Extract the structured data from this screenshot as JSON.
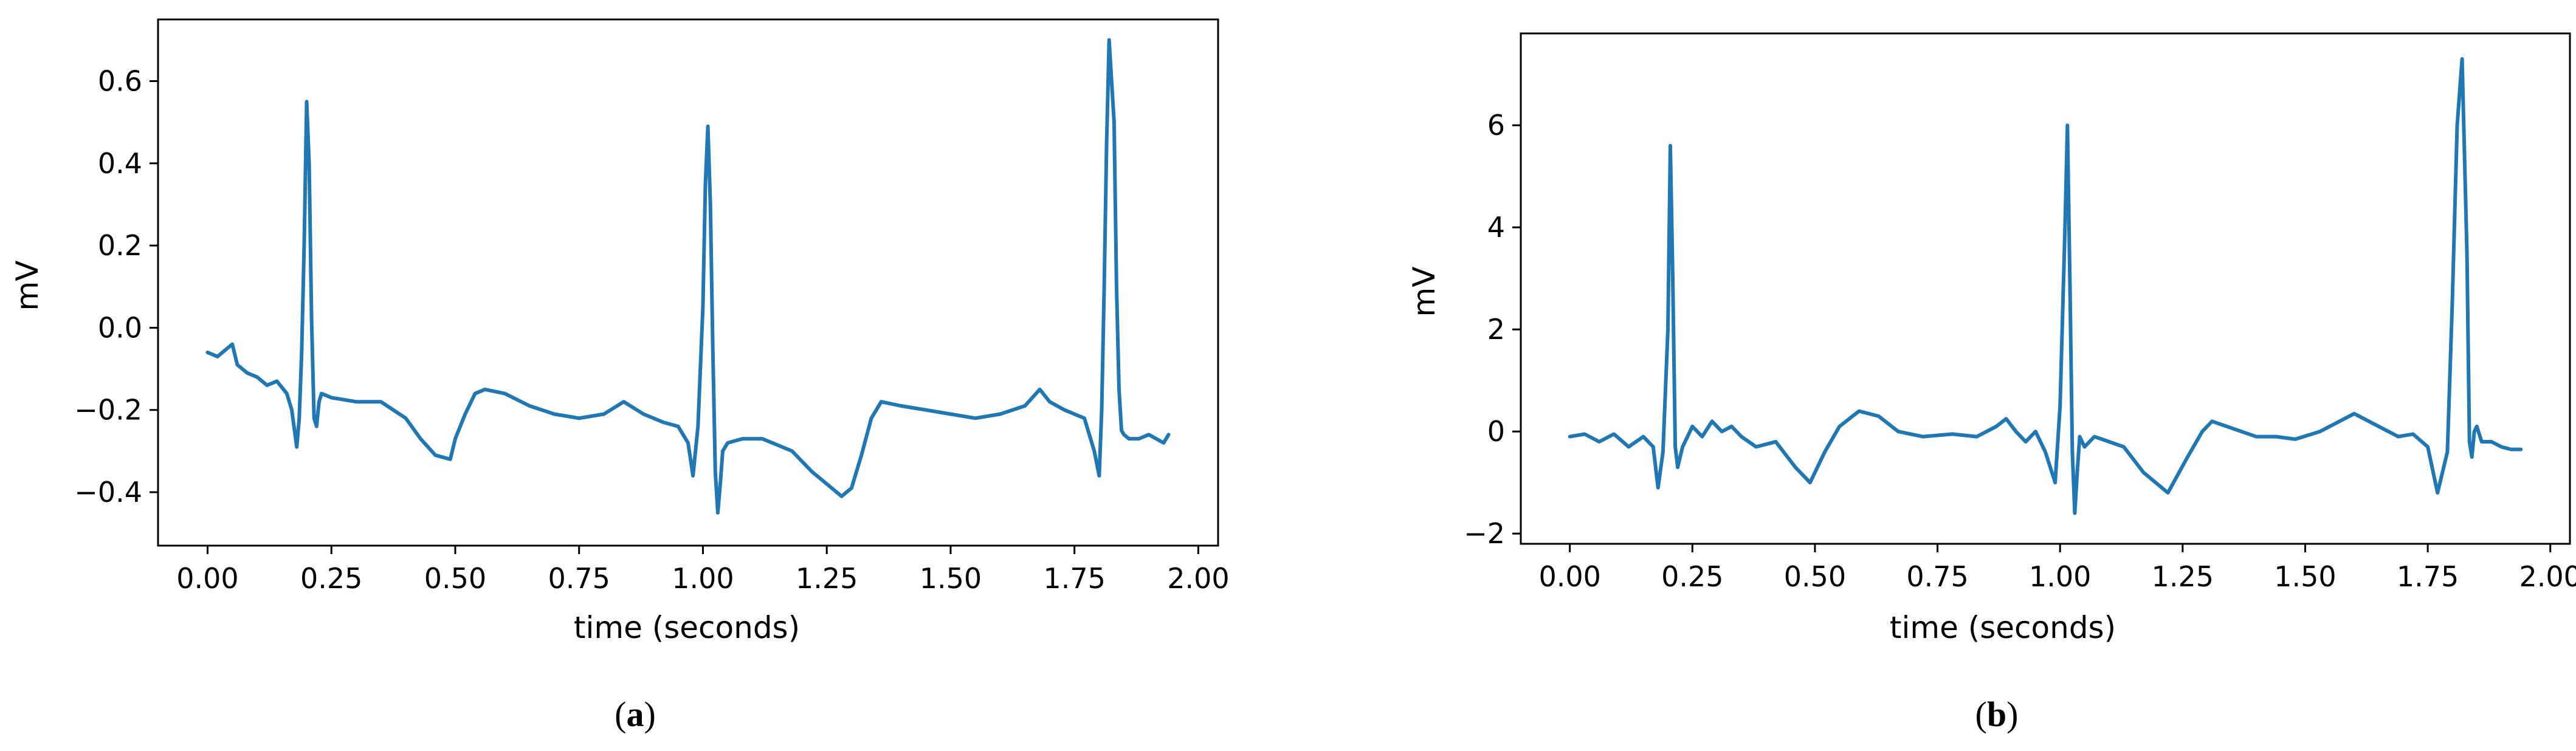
{
  "figure": {
    "background": "#ffffff",
    "line_color": "#1f77b4",
    "panels": [
      {
        "id": "a",
        "caption_letter": "a"
      },
      {
        "id": "b",
        "caption_letter": "b"
      }
    ]
  },
  "chart_data": [
    {
      "type": "line",
      "panel": "a",
      "title": "",
      "xlabel": "time (seconds)",
      "ylabel": "mV",
      "xlim": [
        -0.1,
        2.04
      ],
      "ylim": [
        -0.53,
        0.75
      ],
      "xticks": [
        0.0,
        0.25,
        0.5,
        0.75,
        1.0,
        1.25,
        1.5,
        1.75,
        2.0
      ],
      "xtick_labels": [
        "0.00",
        "0.25",
        "0.50",
        "0.75",
        "1.00",
        "1.25",
        "1.50",
        "1.75",
        "2.00"
      ],
      "yticks": [
        -0.4,
        -0.2,
        0.0,
        0.2,
        0.4,
        0.6
      ],
      "ytick_labels": [
        "−0.4",
        "−0.2",
        "0.0",
        "0.2",
        "0.4",
        "0.6"
      ],
      "grid": false,
      "legend": "none",
      "series": [
        {
          "color": "#1f77b4",
          "x": [
            0.0,
            0.02,
            0.03,
            0.05,
            0.06,
            0.08,
            0.1,
            0.12,
            0.14,
            0.16,
            0.17,
            0.18,
            0.185,
            0.19,
            0.195,
            0.2,
            0.205,
            0.21,
            0.215,
            0.22,
            0.225,
            0.23,
            0.25,
            0.3,
            0.35,
            0.4,
            0.43,
            0.46,
            0.49,
            0.5,
            0.52,
            0.54,
            0.56,
            0.6,
            0.65,
            0.7,
            0.75,
            0.8,
            0.84,
            0.88,
            0.92,
            0.95,
            0.97,
            0.98,
            0.99,
            1.0,
            1.005,
            1.01,
            1.015,
            1.02,
            1.025,
            1.03,
            1.035,
            1.04,
            1.045,
            1.05,
            1.08,
            1.12,
            1.18,
            1.22,
            1.25,
            1.28,
            1.3,
            1.32,
            1.34,
            1.36,
            1.4,
            1.45,
            1.5,
            1.55,
            1.6,
            1.65,
            1.68,
            1.7,
            1.73,
            1.77,
            1.79,
            1.8,
            1.805,
            1.81,
            1.815,
            1.82,
            1.83,
            1.835,
            1.84,
            1.845,
            1.85,
            1.86,
            1.88,
            1.9,
            1.93,
            1.94
          ],
          "y": [
            -0.06,
            -0.07,
            -0.06,
            -0.04,
            -0.09,
            -0.11,
            -0.12,
            -0.14,
            -0.13,
            -0.16,
            -0.2,
            -0.29,
            -0.22,
            -0.06,
            0.2,
            0.55,
            0.4,
            0.02,
            -0.22,
            -0.24,
            -0.18,
            -0.16,
            -0.17,
            -0.18,
            -0.18,
            -0.22,
            -0.27,
            -0.31,
            -0.32,
            -0.27,
            -0.21,
            -0.16,
            -0.15,
            -0.16,
            -0.19,
            -0.21,
            -0.22,
            -0.21,
            -0.18,
            -0.21,
            -0.23,
            -0.24,
            -0.28,
            -0.36,
            -0.24,
            0.05,
            0.35,
            0.49,
            0.3,
            -0.05,
            -0.35,
            -0.45,
            -0.38,
            -0.3,
            -0.29,
            -0.28,
            -0.27,
            -0.27,
            -0.3,
            -0.35,
            -0.38,
            -0.41,
            -0.39,
            -0.31,
            -0.22,
            -0.18,
            -0.19,
            -0.2,
            -0.21,
            -0.22,
            -0.21,
            -0.19,
            -0.15,
            -0.18,
            -0.2,
            -0.22,
            -0.3,
            -0.36,
            -0.2,
            0.1,
            0.45,
            0.7,
            0.5,
            0.1,
            -0.15,
            -0.25,
            -0.26,
            -0.27,
            -0.27,
            -0.26,
            -0.28,
            -0.26
          ]
        }
      ]
    },
    {
      "type": "line",
      "panel": "b",
      "title": "",
      "xlabel": "time (seconds)",
      "ylabel": "mV",
      "xlim": [
        -0.1,
        2.04
      ],
      "ylim": [
        -2.2,
        7.8
      ],
      "xticks": [
        0.0,
        0.25,
        0.5,
        0.75,
        1.0,
        1.25,
        1.5,
        1.75,
        2.0
      ],
      "xtick_labels": [
        "0.00",
        "0.25",
        "0.50",
        "0.75",
        "1.00",
        "1.25",
        "1.50",
        "1.75",
        "2.00"
      ],
      "yticks": [
        -2,
        0,
        2,
        4,
        6
      ],
      "ytick_labels": [
        "−2",
        "0",
        "2",
        "4",
        "6"
      ],
      "grid": false,
      "legend": "none",
      "series": [
        {
          "color": "#1f77b4",
          "x": [
            0.0,
            0.03,
            0.06,
            0.09,
            0.12,
            0.15,
            0.17,
            0.18,
            0.19,
            0.2,
            0.205,
            0.21,
            0.215,
            0.22,
            0.23,
            0.25,
            0.27,
            0.29,
            0.31,
            0.33,
            0.35,
            0.38,
            0.42,
            0.46,
            0.49,
            0.52,
            0.55,
            0.59,
            0.63,
            0.67,
            0.72,
            0.78,
            0.83,
            0.87,
            0.89,
            0.91,
            0.93,
            0.95,
            0.97,
            0.99,
            1.0,
            1.01,
            1.015,
            1.02,
            1.025,
            1.03,
            1.035,
            1.04,
            1.05,
            1.07,
            1.1,
            1.13,
            1.17,
            1.22,
            1.26,
            1.29,
            1.31,
            1.34,
            1.37,
            1.4,
            1.44,
            1.48,
            1.53,
            1.6,
            1.65,
            1.69,
            1.72,
            1.75,
            1.77,
            1.79,
            1.8,
            1.81,
            1.82,
            1.83,
            1.835,
            1.84,
            1.845,
            1.85,
            1.86,
            1.88,
            1.9,
            1.92,
            1.94
          ],
          "y": [
            -0.1,
            -0.05,
            -0.2,
            -0.05,
            -0.3,
            -0.1,
            -0.3,
            -1.1,
            -0.4,
            2.0,
            5.6,
            3.0,
            -0.3,
            -0.7,
            -0.3,
            0.1,
            -0.1,
            0.2,
            0.0,
            0.1,
            -0.1,
            -0.3,
            -0.2,
            -0.7,
            -1.0,
            -0.4,
            0.1,
            0.4,
            0.3,
            0.0,
            -0.1,
            -0.05,
            -0.1,
            0.1,
            0.25,
            0.0,
            -0.2,
            0.0,
            -0.4,
            -1.0,
            0.5,
            4.0,
            6.0,
            3.0,
            -0.4,
            -1.6,
            -0.8,
            -0.1,
            -0.3,
            -0.1,
            -0.2,
            -0.3,
            -0.8,
            -1.2,
            -0.5,
            0.0,
            0.2,
            0.1,
            0.0,
            -0.1,
            -0.1,
            -0.15,
            0.0,
            0.35,
            0.1,
            -0.1,
            -0.05,
            -0.3,
            -1.2,
            -0.4,
            2.5,
            6.0,
            7.3,
            3.5,
            -0.2,
            -0.5,
            0.0,
            0.1,
            -0.2,
            -0.2,
            -0.3,
            -0.35,
            -0.35
          ]
        }
      ]
    }
  ]
}
